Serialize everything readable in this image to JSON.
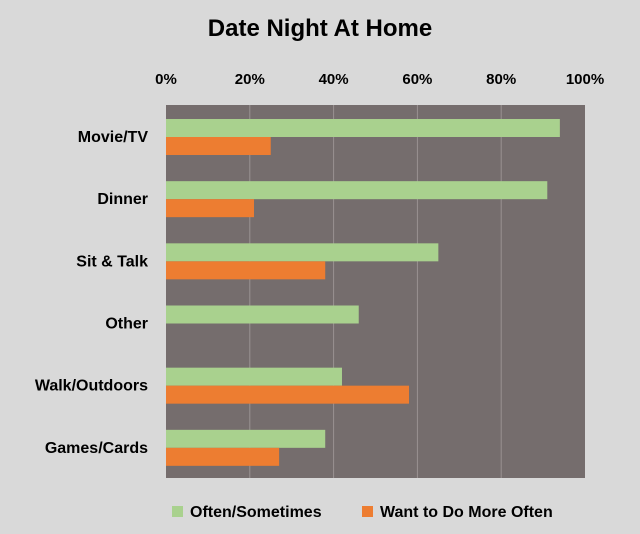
{
  "colors": {
    "background": "#d9d9d9",
    "plot_area": "#756d6d",
    "gridline": "#9a9292",
    "series_often": "#a9d18e",
    "series_want": "#ed7d31"
  },
  "chart_data": {
    "type": "bar",
    "orientation": "horizontal",
    "title": "Date Night At Home",
    "categories": [
      "Movie/TV",
      "Dinner",
      "Sit & Talk",
      "Other",
      "Walk/Outdoors",
      "Games/Cards"
    ],
    "series": [
      {
        "name": "Often/Sometimes",
        "values": [
          94,
          91,
          65,
          46,
          42,
          38
        ]
      },
      {
        "name": "Want to Do More Often",
        "values": [
          25,
          21,
          38,
          0,
          58,
          27
        ]
      }
    ],
    "xlim": [
      0,
      100
    ],
    "x_ticks": [
      "0%",
      "20%",
      "40%",
      "60%",
      "80%",
      "100%"
    ],
    "x_tick_values": [
      0,
      20,
      40,
      60,
      80,
      100
    ],
    "axis_position": "top",
    "grid": true,
    "legend": "bottom"
  }
}
